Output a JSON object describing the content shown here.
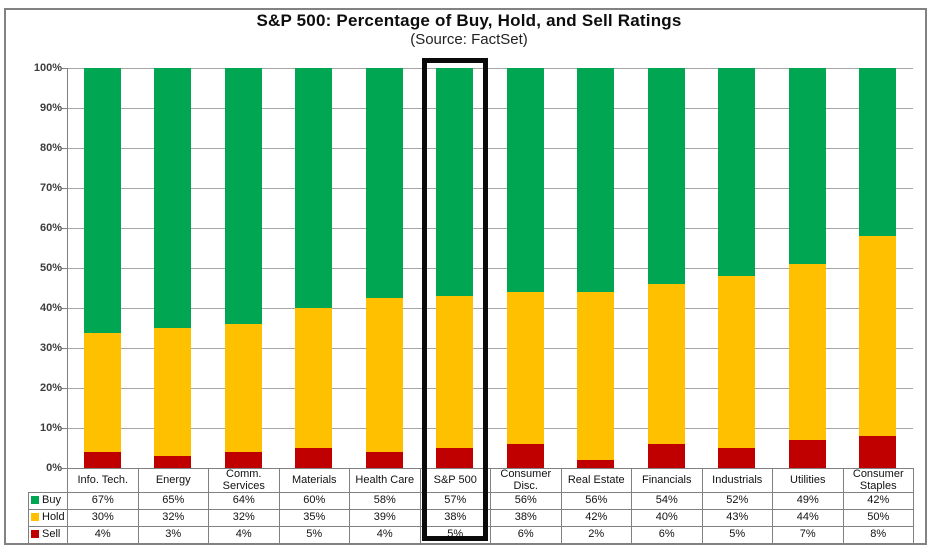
{
  "chart_data": {
    "type": "bar",
    "stacked": true,
    "stacked_unit": "percent",
    "title": "S&P 500: Percentage of Buy, Hold, and Sell Ratings",
    "subtitle": "(Source: FactSet)",
    "categories": [
      "Info. Tech.",
      "Energy",
      "Comm. Services",
      "Materials",
      "Health Care",
      "S&P 500",
      "Consumer Disc.",
      "Real Estate",
      "Financials",
      "Industrials",
      "Utilities",
      "Consumer Staples"
    ],
    "series": [
      {
        "name": "Buy",
        "color": "#00A651",
        "values": [
          67,
          65,
          64,
          60,
          58,
          57,
          56,
          56,
          54,
          52,
          49,
          42
        ]
      },
      {
        "name": "Hold",
        "color": "#FFC000",
        "values": [
          30,
          32,
          32,
          35,
          39,
          38,
          38,
          42,
          40,
          43,
          44,
          50
        ]
      },
      {
        "name": "Sell",
        "color": "#C00000",
        "values": [
          4,
          3,
          4,
          5,
          4,
          5,
          6,
          2,
          6,
          5,
          7,
          8
        ]
      }
    ],
    "value_suffix": "%",
    "y_ticks": [
      "100%",
      "90%",
      "80%",
      "70%",
      "60%",
      "50%",
      "40%",
      "30%",
      "20%",
      "10%",
      "0%"
    ],
    "ylim": [
      0,
      100
    ],
    "grid": true,
    "legend_position": "table-rows-left",
    "data_table_shown": true,
    "highlighted_category": "S&P 500"
  },
  "colors": {
    "buy": "#00A651",
    "hold": "#FFC000",
    "sell": "#C00000",
    "gridline": "#A6A6A6",
    "axis": "#808080",
    "table_border": "#808080",
    "outer_border": "#828282",
    "highlight_box": "#0A0A0A"
  }
}
